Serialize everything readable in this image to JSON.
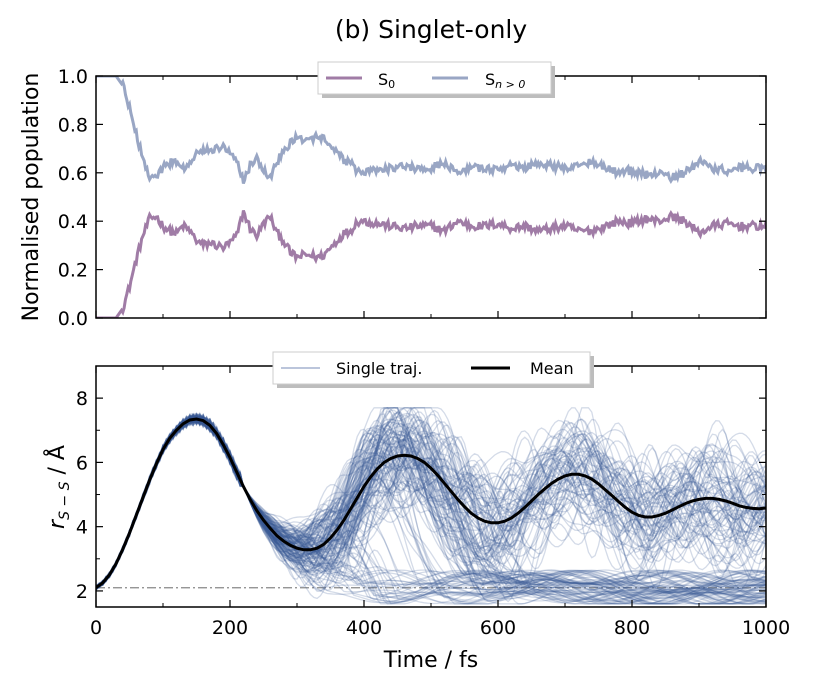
{
  "chart_data": [
    {
      "type": "line",
      "title": "(b) Singlet-only",
      "xlabel": "",
      "ylabel": "Normalised population",
      "xlim": [
        0,
        1000
      ],
      "ylim": [
        0.0,
        1.0
      ],
      "xticks": [
        0,
        200,
        400,
        600,
        800,
        1000
      ],
      "yticks": [
        0.0,
        0.2,
        0.4,
        0.6,
        0.8,
        1.0
      ],
      "ytick_labels": [
        "0.0",
        "0.2",
        "0.4",
        "0.6",
        "0.8",
        "1.0"
      ],
      "legend": {
        "location": "top-center",
        "entries": [
          "S0",
          "Sn>0"
        ]
      },
      "series": [
        {
          "name": "S0",
          "label_main": "S",
          "label_sub": "0",
          "color": "#a07ca6",
          "x": [
            0,
            20,
            30,
            40,
            50,
            60,
            70,
            80,
            90,
            100,
            110,
            120,
            130,
            140,
            150,
            160,
            170,
            180,
            190,
            200,
            210,
            220,
            230,
            240,
            250,
            260,
            270,
            280,
            290,
            300,
            310,
            320,
            330,
            340,
            350,
            360,
            370,
            380,
            390,
            400,
            420,
            440,
            460,
            480,
            500,
            520,
            540,
            560,
            580,
            600,
            620,
            640,
            660,
            680,
            700,
            720,
            740,
            760,
            780,
            800,
            820,
            840,
            860,
            880,
            900,
            920,
            940,
            960,
            980,
            1000
          ],
          "values": [
            0.0,
            0.0,
            0.0,
            0.04,
            0.13,
            0.24,
            0.34,
            0.41,
            0.42,
            0.38,
            0.36,
            0.35,
            0.38,
            0.36,
            0.32,
            0.3,
            0.31,
            0.3,
            0.29,
            0.31,
            0.34,
            0.44,
            0.37,
            0.34,
            0.39,
            0.42,
            0.35,
            0.32,
            0.27,
            0.25,
            0.26,
            0.26,
            0.25,
            0.26,
            0.29,
            0.32,
            0.35,
            0.36,
            0.4,
            0.4,
            0.39,
            0.38,
            0.37,
            0.38,
            0.38,
            0.36,
            0.4,
            0.38,
            0.38,
            0.39,
            0.37,
            0.38,
            0.36,
            0.37,
            0.38,
            0.36,
            0.36,
            0.38,
            0.4,
            0.39,
            0.41,
            0.4,
            0.42,
            0.4,
            0.35,
            0.38,
            0.39,
            0.38,
            0.38,
            0.38
          ]
        },
        {
          "name": "Sn>0",
          "label_main": "S",
          "label_sub": "n > 0",
          "color": "#99a6c4",
          "x": [
            0,
            20,
            30,
            40,
            50,
            60,
            70,
            80,
            90,
            100,
            110,
            120,
            130,
            140,
            150,
            160,
            170,
            180,
            190,
            200,
            210,
            220,
            230,
            240,
            250,
            260,
            270,
            280,
            290,
            300,
            310,
            320,
            330,
            340,
            350,
            360,
            370,
            380,
            390,
            400,
            420,
            440,
            460,
            480,
            500,
            520,
            540,
            560,
            580,
            600,
            620,
            640,
            660,
            680,
            700,
            720,
            740,
            760,
            780,
            800,
            820,
            840,
            860,
            880,
            900,
            920,
            940,
            960,
            980,
            1000
          ],
          "values": [
            1.0,
            1.0,
            1.0,
            0.96,
            0.87,
            0.76,
            0.66,
            0.59,
            0.58,
            0.62,
            0.64,
            0.65,
            0.62,
            0.64,
            0.68,
            0.7,
            0.69,
            0.7,
            0.71,
            0.69,
            0.66,
            0.56,
            0.63,
            0.66,
            0.61,
            0.58,
            0.65,
            0.68,
            0.73,
            0.75,
            0.74,
            0.74,
            0.75,
            0.74,
            0.71,
            0.68,
            0.65,
            0.64,
            0.6,
            0.6,
            0.61,
            0.62,
            0.63,
            0.62,
            0.62,
            0.64,
            0.6,
            0.62,
            0.62,
            0.61,
            0.63,
            0.62,
            0.64,
            0.63,
            0.62,
            0.64,
            0.64,
            0.62,
            0.6,
            0.61,
            0.59,
            0.6,
            0.58,
            0.6,
            0.65,
            0.62,
            0.61,
            0.62,
            0.62,
            0.62
          ]
        }
      ]
    },
    {
      "type": "line",
      "title": "",
      "xlabel": "Time / fs",
      "ylabel_main": "r",
      "ylabel_sub": "S − S",
      "ylabel_unit": " / Å",
      "xlim": [
        0,
        1000
      ],
      "ylim": [
        1.5,
        9.0
      ],
      "xticks": [
        0,
        200,
        400,
        600,
        800,
        1000
      ],
      "yticks": [
        2,
        4,
        6,
        8
      ],
      "reference_line": {
        "y": 2.1,
        "style": "dash-dot",
        "color": "#888888"
      },
      "legend": {
        "location": "top-center",
        "entries": [
          "Single traj.",
          "Mean"
        ]
      },
      "series": [
        {
          "name": "Single traj.",
          "color": "#3b5a98",
          "opacity": 0.22,
          "count": 150,
          "description": "bundle of individual trajectories"
        },
        {
          "name": "Mean",
          "color": "#000000",
          "x": [
            0,
            10,
            20,
            30,
            40,
            50,
            60,
            70,
            80,
            90,
            100,
            110,
            120,
            130,
            140,
            150,
            160,
            170,
            180,
            190,
            200,
            210,
            220,
            230,
            240,
            250,
            260,
            270,
            280,
            290,
            300,
            310,
            320,
            330,
            340,
            350,
            360,
            370,
            380,
            390,
            400,
            410,
            420,
            430,
            440,
            450,
            460,
            470,
            480,
            490,
            500,
            510,
            520,
            530,
            540,
            550,
            560,
            570,
            580,
            590,
            600,
            610,
            620,
            630,
            640,
            650,
            660,
            670,
            680,
            690,
            700,
            710,
            720,
            730,
            740,
            750,
            760,
            770,
            780,
            790,
            800,
            810,
            820,
            830,
            840,
            850,
            860,
            870,
            880,
            890,
            900,
            910,
            920,
            930,
            940,
            950,
            960,
            970,
            980,
            990,
            1000
          ],
          "values": [
            2.1,
            2.25,
            2.5,
            2.85,
            3.3,
            3.8,
            4.35,
            4.9,
            5.45,
            5.95,
            6.4,
            6.75,
            7.0,
            7.2,
            7.32,
            7.35,
            7.3,
            7.15,
            6.9,
            6.55,
            6.15,
            5.7,
            5.25,
            4.85,
            4.5,
            4.2,
            3.95,
            3.72,
            3.55,
            3.42,
            3.33,
            3.28,
            3.28,
            3.33,
            3.45,
            3.65,
            3.9,
            4.2,
            4.55,
            4.9,
            5.25,
            5.55,
            5.8,
            6.0,
            6.12,
            6.2,
            6.22,
            6.2,
            6.12,
            6.0,
            5.82,
            5.6,
            5.35,
            5.1,
            4.85,
            4.62,
            4.42,
            4.27,
            4.17,
            4.12,
            4.12,
            4.17,
            4.27,
            4.42,
            4.6,
            4.8,
            5.0,
            5.18,
            5.35,
            5.48,
            5.58,
            5.63,
            5.63,
            5.58,
            5.48,
            5.33,
            5.15,
            4.97,
            4.78,
            4.6,
            4.45,
            4.35,
            4.3,
            4.3,
            4.35,
            4.42,
            4.52,
            4.62,
            4.72,
            4.8,
            4.85,
            4.88,
            4.88,
            4.85,
            4.8,
            4.73,
            4.65,
            4.6,
            4.57,
            4.56,
            4.58
          ]
        }
      ]
    }
  ]
}
